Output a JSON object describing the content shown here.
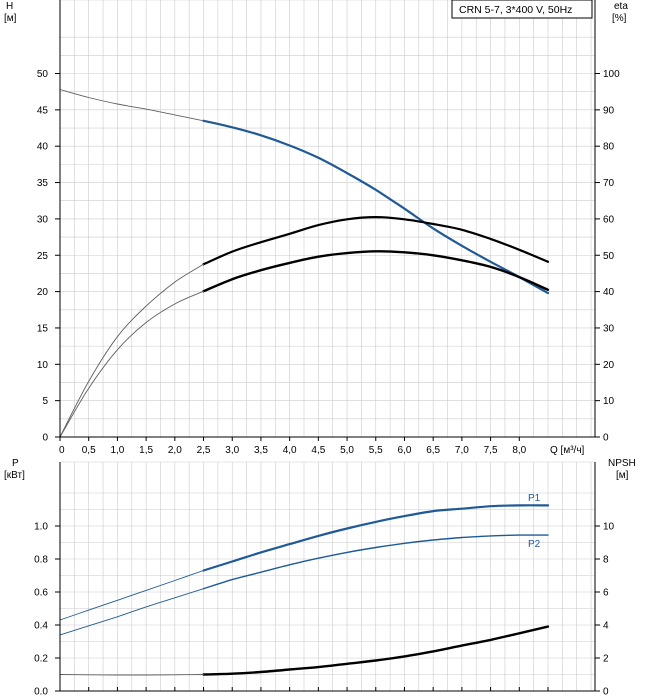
{
  "legend_box": "CRN 5-7, 3*400 V, 50Hz",
  "top_chart": {
    "y_left_label": [
      "H",
      "[м]"
    ],
    "y_right_label": [
      "eta",
      "[%]"
    ],
    "x_label": "Q [м³/ч]",
    "x_ticks": [
      "0",
      "0,5",
      "1,0",
      "1,5",
      "2,0",
      "2,5",
      "3,0",
      "3,5",
      "4,0",
      "4,5",
      "5,0",
      "5,5",
      "6,0",
      "6,5",
      "7,0",
      "7,5",
      "8,0"
    ],
    "y_left_ticks": [
      "0",
      "5",
      "10",
      "15",
      "20",
      "25",
      "30",
      "35",
      "40",
      "45",
      "50"
    ],
    "y_right_ticks": [
      "0",
      "10",
      "20",
      "30",
      "40",
      "50",
      "60",
      "70",
      "80",
      "90",
      "100"
    ]
  },
  "bottom_chart": {
    "y_left_label": [
      "P",
      "[кВт]"
    ],
    "y_right_label": [
      "NPSH",
      "[м]"
    ],
    "y_left_ticks": [
      "0.0",
      "0.2",
      "0.4",
      "0.6",
      "0.8",
      "1.0"
    ],
    "y_right_ticks": [
      "0",
      "2",
      "4",
      "6",
      "8",
      "10"
    ],
    "series_labels": {
      "p1": "P1",
      "p2": "P2"
    }
  },
  "colors": {
    "blue": "#1f5a96",
    "black": "#000000",
    "grid": "#cccccc",
    "axis": "#000000"
  },
  "chart_data": [
    {
      "type": "line",
      "xlabel": "Q [м³/ч]",
      "ylabel": "H [м]",
      "y2label": "eta [%]",
      "xlim": [
        0,
        8.5
      ],
      "ylim": [
        0,
        55
      ],
      "y2lim": [
        0,
        110
      ],
      "grid": true,
      "series": [
        {
          "axis": "left",
          "color": "#1f5a96",
          "style": "operating",
          "x": [
            2.5,
            3.0,
            3.5,
            4.0,
            4.5,
            5.0,
            5.5,
            6.0,
            6.5,
            7.0,
            7.5,
            8.0,
            8.5
          ],
          "values": [
            43.5,
            42.6,
            41.5,
            40.1,
            38.4,
            36.3,
            34.0,
            31.4,
            28.7,
            26.3,
            24.1,
            22.0,
            19.8
          ]
        },
        {
          "axis": "left",
          "color": "#606060",
          "style": "extension",
          "x": [
            0,
            0.5,
            1.0,
            1.5,
            2.0,
            2.5
          ],
          "values": [
            47.8,
            46.7,
            45.8,
            45.1,
            44.3,
            43.5
          ]
        },
        {
          "axis": "right",
          "color": "#000000",
          "style": "operating",
          "x": [
            2.5,
            3.0,
            3.5,
            4.0,
            4.5,
            5.0,
            5.5,
            6.0,
            6.5,
            7.0,
            7.5,
            8.0,
            8.5
          ],
          "values": [
            47.5,
            51.0,
            53.6,
            55.9,
            58.3,
            59.9,
            60.5,
            59.9,
            58.6,
            57.0,
            54.5,
            51.5,
            48.2
          ]
        },
        {
          "axis": "right",
          "color": "#606060",
          "style": "extension",
          "x": [
            0,
            0.5,
            1.0,
            1.5,
            2.0,
            2.5
          ],
          "values": [
            0,
            15.3,
            27.6,
            36.0,
            42.6,
            47.5
          ]
        },
        {
          "axis": "right",
          "color": "#000000",
          "style": "operating-bold",
          "x": [
            2.5,
            3.0,
            3.5,
            4.0,
            4.5,
            5.0,
            5.5,
            6.0,
            6.5,
            7.0,
            7.5,
            8.0,
            8.5
          ],
          "values": [
            40.1,
            43.4,
            45.9,
            47.9,
            49.6,
            50.6,
            51.1,
            50.8,
            50.0,
            48.6,
            46.8,
            44.0,
            40.5
          ]
        },
        {
          "axis": "right",
          "color": "#606060",
          "style": "extension",
          "x": [
            0,
            0.5,
            1.0,
            1.5,
            2.0,
            2.5
          ],
          "values": [
            0,
            13.4,
            24.0,
            31.5,
            36.6,
            40.1
          ]
        }
      ]
    },
    {
      "type": "line",
      "ylabel": "P [кВт]",
      "y2label": "NPSH [м]",
      "xlim": [
        0,
        8.5
      ],
      "ylim": [
        0,
        1.2
      ],
      "y2lim": [
        0,
        12
      ],
      "grid": true,
      "series": [
        {
          "name": "P1",
          "axis": "left",
          "color": "#1f5a96",
          "style": "operating",
          "x": [
            2.5,
            3.0,
            3.5,
            4.0,
            4.5,
            5.0,
            5.5,
            6.0,
            6.5,
            7.0,
            7.5,
            8.0,
            8.5
          ],
          "values": [
            0.73,
            0.785,
            0.84,
            0.89,
            0.94,
            0.985,
            1.025,
            1.06,
            1.09,
            1.105,
            1.12,
            1.125,
            1.125
          ]
        },
        {
          "axis": "left",
          "color": "#1f5a96",
          "style": "extension",
          "x": [
            0,
            0.5,
            1.0,
            1.5,
            2.0,
            2.5
          ],
          "values": [
            0.43,
            0.49,
            0.55,
            0.61,
            0.67,
            0.73
          ]
        },
        {
          "name": "P2",
          "axis": "left",
          "color": "#1f5a96",
          "style": "operating-thin",
          "x": [
            2.5,
            3.0,
            3.5,
            4.0,
            4.5,
            5.0,
            5.5,
            6.0,
            6.5,
            7.0,
            7.5,
            8.0,
            8.5
          ],
          "values": [
            0.62,
            0.675,
            0.72,
            0.765,
            0.805,
            0.84,
            0.87,
            0.895,
            0.915,
            0.93,
            0.94,
            0.945,
            0.945
          ]
        },
        {
          "axis": "left",
          "color": "#1f5a96",
          "style": "extension",
          "x": [
            0,
            0.5,
            1.0,
            1.5,
            2.0,
            2.5
          ],
          "values": [
            0.34,
            0.395,
            0.45,
            0.51,
            0.565,
            0.62
          ]
        },
        {
          "axis": "right",
          "color": "#000000",
          "style": "operating-bold",
          "x": [
            2.5,
            3.0,
            3.5,
            4.0,
            4.5,
            5.0,
            5.5,
            6.0,
            6.5,
            7.0,
            7.5,
            8.0,
            8.5
          ],
          "values": [
            1.0,
            1.05,
            1.15,
            1.3,
            1.45,
            1.65,
            1.85,
            2.1,
            2.4,
            2.75,
            3.1,
            3.5,
            3.9
          ]
        },
        {
          "axis": "right",
          "color": "#606060",
          "style": "extension",
          "x": [
            0,
            0.5,
            1.0,
            1.5,
            2.0,
            2.5
          ],
          "values": [
            1.0,
            0.98,
            0.97,
            0.97,
            0.98,
            1.0
          ]
        }
      ]
    }
  ]
}
